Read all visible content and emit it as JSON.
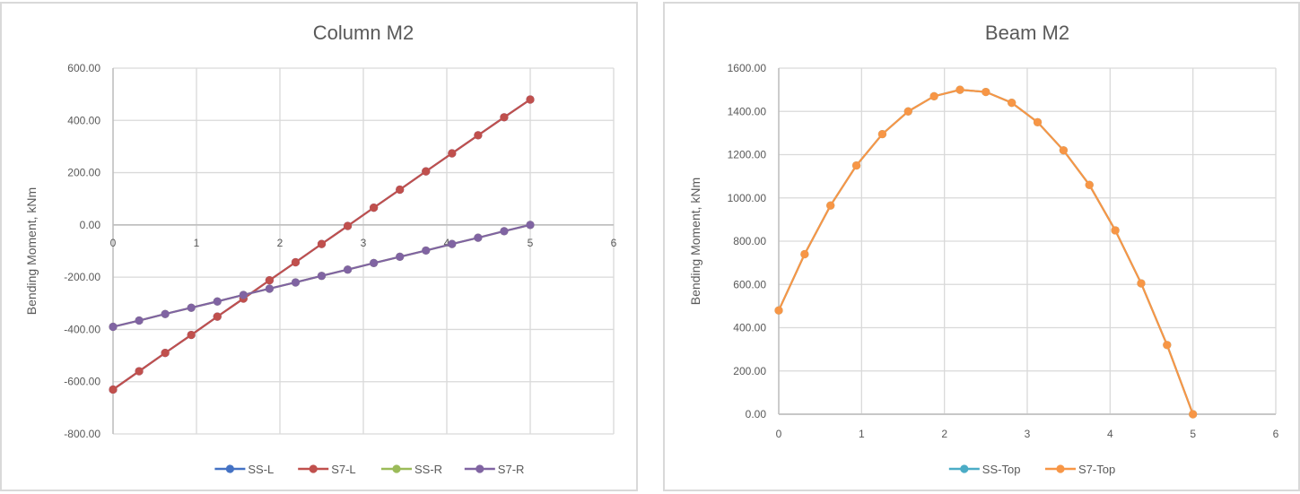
{
  "chart_data": [
    {
      "type": "line",
      "title": "Column M2",
      "xlabel": "",
      "ylabel": "Bending Moment, kNm",
      "xlim": [
        0,
        6
      ],
      "ylim": [
        -800,
        600
      ],
      "x_ticks": [
        "0",
        "1",
        "2",
        "3",
        "4",
        "5",
        "6"
      ],
      "y_ticks": [
        "600.00",
        "400.00",
        "200.00",
        "0.00",
        "-200.00",
        "-400.00",
        "-600.00",
        "-800.00"
      ],
      "grid": true,
      "legend_position": "bottom",
      "x": [
        0,
        0.3125,
        0.625,
        0.9375,
        1.25,
        1.5625,
        1.875,
        2.1875,
        2.5,
        2.8125,
        3.125,
        3.4375,
        3.75,
        4.0625,
        4.375,
        4.6875,
        5
      ],
      "series": [
        {
          "name": "SS-L",
          "color": "#4472c4",
          "values": [
            -630,
            -560,
            -490,
            -421,
            -351,
            -282,
            -212,
            -143,
            -73,
            -4,
            66,
            135,
            205,
            274,
            343,
            412,
            480
          ]
        },
        {
          "name": "S7-L",
          "color": "#c0504d",
          "values": [
            -630,
            -560,
            -490,
            -421,
            -351,
            -282,
            -212,
            -143,
            -73,
            -4,
            66,
            135,
            205,
            274,
            343,
            412,
            480
          ]
        },
        {
          "name": "SS-R",
          "color": "#9bbb59",
          "values": [
            -390,
            -366,
            -341,
            -317,
            -293,
            -268,
            -244,
            -220,
            -195,
            -171,
            -146,
            -122,
            -98,
            -73,
            -49,
            -24,
            0
          ]
        },
        {
          "name": "S7-R",
          "color": "#8064a2",
          "values": [
            -390,
            -366,
            -341,
            -317,
            -293,
            -268,
            -244,
            -220,
            -195,
            -171,
            -146,
            -122,
            -98,
            -73,
            -49,
            -24,
            0
          ]
        }
      ]
    },
    {
      "type": "line",
      "title": "Beam M2",
      "xlabel": "",
      "ylabel": "Bending Moment, kNm",
      "xlim": [
        0,
        6
      ],
      "ylim": [
        0,
        1600
      ],
      "x_ticks": [
        "0",
        "1",
        "2",
        "3",
        "4",
        "5",
        "6"
      ],
      "y_ticks": [
        "1600.00",
        "1400.00",
        "1200.00",
        "1000.00",
        "800.00",
        "600.00",
        "400.00",
        "200.00",
        "0.00"
      ],
      "grid": true,
      "legend_position": "bottom",
      "x": [
        0,
        0.3125,
        0.625,
        0.9375,
        1.25,
        1.5625,
        1.875,
        2.1875,
        2.5,
        2.8125,
        3.125,
        3.4375,
        3.75,
        4.0625,
        4.375,
        4.6875,
        5
      ],
      "series": [
        {
          "name": "SS-Top",
          "color": "#4bacc6",
          "values": [
            480,
            740,
            965,
            1150,
            1295,
            1400,
            1470,
            1500,
            1490,
            1440,
            1350,
            1220,
            1060,
            850,
            605,
            320,
            0
          ]
        },
        {
          "name": "S7-Top",
          "color": "#f79646",
          "values": [
            480,
            740,
            965,
            1150,
            1295,
            1400,
            1470,
            1500,
            1490,
            1440,
            1350,
            1220,
            1060,
            850,
            605,
            320,
            0
          ]
        }
      ]
    }
  ],
  "charts": {
    "left": {
      "title": "Column M2",
      "ylabel": "Bending Moment, kNm",
      "legend": [
        "SS-L",
        "S7-L",
        "SS-R",
        "S7-R"
      ]
    },
    "right": {
      "title": "Beam M2",
      "ylabel": "Bending Moment, kNm",
      "legend": [
        "SS-Top",
        "S7-Top"
      ]
    }
  }
}
